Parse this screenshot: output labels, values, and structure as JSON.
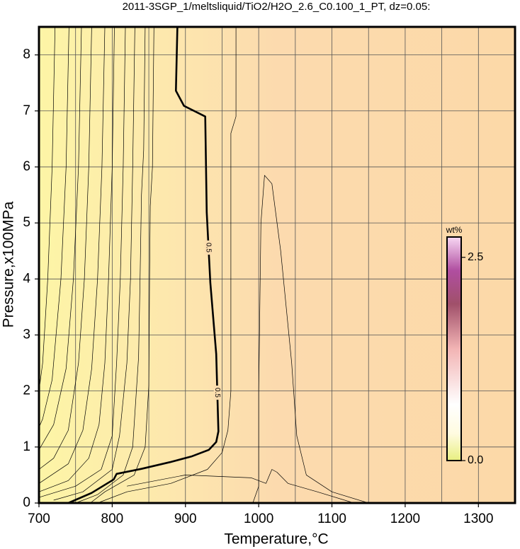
{
  "chart_data": {
    "type": "contour",
    "title": "2011-3SGP_1/meltsliquid/TiO2/H2O_2.6_C0.100_1_PT, dz=0.05:",
    "x_label": "Temperature,°C",
    "y_label": "Pressure,x100MPa",
    "xlim": [
      700,
      1350
    ],
    "ylim": [
      0,
      8.5
    ],
    "xticks": [
      700,
      800,
      900,
      1000,
      1100,
      1200,
      1300
    ],
    "xgrid": [
      750,
      800,
      850,
      900,
      950,
      1000,
      1050,
      1100,
      1150,
      1200,
      1250,
      1300
    ],
    "yticks": [
      0,
      1,
      2,
      3,
      4,
      5,
      6,
      7,
      8
    ],
    "grid": true,
    "contours": [
      {
        "level": 0.5,
        "x": [
          740,
          772,
          802,
          806,
          840,
          879,
          908,
          932,
          942,
          945,
          942,
          934,
          929,
          927,
          898,
          887,
          889
        ],
        "y": [
          0,
          0.18,
          0.42,
          0.52,
          0.61,
          0.73,
          0.83,
          0.95,
          1.09,
          1.28,
          2.66,
          3.93,
          5.19,
          6.9,
          7.09,
          7.36,
          8.5
        ]
      },
      {
        "x": [
          722,
          718,
          712,
          705,
          700
        ],
        "y": [
          8.5,
          6,
          4,
          2.5,
          2.0
        ]
      },
      {
        "x": [
          741,
          737,
          730,
          718,
          705,
          700
        ],
        "y": [
          8.5,
          6,
          4,
          2.2,
          1.5,
          1.35
        ]
      },
      {
        "x": [
          758,
          754,
          747,
          737,
          720,
          700
        ],
        "y": [
          8.5,
          6,
          4,
          2.4,
          1.4,
          0.95
        ]
      },
      {
        "x": [
          772,
          768,
          762,
          754,
          740,
          720,
          700
        ],
        "y": [
          8.5,
          6,
          4,
          2.5,
          1.3,
          0.8,
          0.6
        ]
      },
      {
        "x": [
          790,
          786,
          780,
          772,
          760,
          740,
          700
        ],
        "y": [
          8.5,
          6,
          4,
          2.4,
          1.3,
          0.7,
          0.35
        ]
      },
      {
        "x": [
          803,
          800,
          795,
          790,
          782,
          768,
          740,
          700
        ],
        "y": [
          8.5,
          6,
          4,
          2.5,
          1.4,
          0.8,
          0.4,
          0.2
        ]
      },
      {
        "x": [
          818,
          815,
          811,
          806,
          800,
          785,
          750,
          700
        ],
        "y": [
          8.5,
          6,
          4,
          2.5,
          1.2,
          0.6,
          0.3,
          0.1
        ]
      },
      {
        "x": [
          831,
          828,
          825,
          820,
          810,
          800,
          760,
          720
        ],
        "y": [
          8.5,
          6,
          4,
          2.5,
          1.2,
          0.6,
          0.2,
          0.05
        ]
      },
      {
        "x": [
          845,
          843,
          840,
          838,
          836,
          828,
          815,
          780,
          750
        ],
        "y": [
          8.5,
          6.3,
          5.5,
          4,
          2.6,
          1.0,
          0.5,
          0.15,
          0
        ]
      },
      {
        "x": [
          857,
          855,
          852,
          851,
          850,
          845,
          830,
          790,
          770
        ],
        "y": [
          8.5,
          6.0,
          5.3,
          4,
          2.1,
          1.0,
          0.5,
          0.2,
          0
        ]
      },
      {
        "x": [
          969,
          969,
          962,
          962,
          958,
          950,
          930,
          880,
          820,
          780
        ],
        "y": [
          8.5,
          6.9,
          6.6,
          2.0,
          1.3,
          0.9,
          0.6,
          0.35,
          0.2,
          0
        ]
      },
      {
        "x": [
          992,
          1000,
          1000,
          1003,
          1008,
          1018,
          1030,
          1045,
          1052,
          1065,
          1100,
          1150
        ],
        "y": [
          0,
          0.3,
          2,
          5,
          5.85,
          5.7,
          4.5,
          2.5,
          1.2,
          0.5,
          0.2,
          0
        ]
      },
      {
        "x": [
          820,
          900,
          990,
          1010,
          1018,
          1025,
          1040,
          1080,
          1130
        ],
        "y": [
          0.3,
          0.5,
          0.45,
          0.35,
          0.6,
          0.55,
          0.35,
          0.2,
          0
        ]
      }
    ],
    "colorbar": {
      "label": "wt%",
      "lim": [
        0,
        2.75
      ],
      "ticks": [
        {
          "value": 0,
          "label": "0.0"
        },
        {
          "value": 2.5,
          "label": "2.5"
        }
      ]
    }
  }
}
